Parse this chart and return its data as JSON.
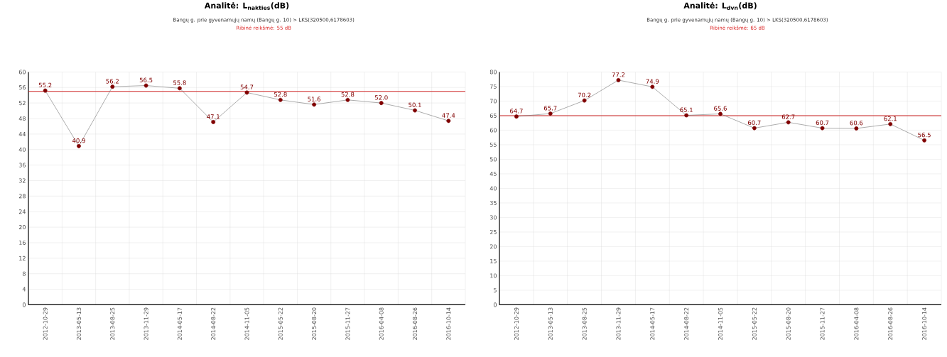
{
  "chart_data": [
    {
      "type": "line",
      "title": "Analitė: L$_{nakties}$(dB)",
      "subtitle": "Bangų g. prie gyvenamųjų namų (Bangų g. 10) > LKS(320500,6178603)",
      "annotations": [
        "Ribinė reikšmė: 55 dB"
      ],
      "categories": [
        "2012-10-29",
        "2013-05-13",
        "2013-08-25",
        "2013-11-29",
        "2014-05-17",
        "2014-08-22",
        "2014-11-05",
        "2015-05-22",
        "2015-08-20",
        "2015-11-27",
        "2016-04-08",
        "2016-08-26",
        "2016-10-14"
      ],
      "series": [
        {
          "color": "#800000",
          "values": [
            55.2,
            40.9,
            56.2,
            56.5,
            55.8,
            47.1,
            54.7,
            52.8,
            51.6,
            52.8,
            52.0,
            50.1,
            47.4
          ],
          "value_labels": [
            "55.2",
            "40.9",
            "56.2",
            "56.5",
            "55.8",
            "47.1",
            "54.7",
            "52.8",
            "51.6",
            "52.8",
            "52.0",
            "50.1",
            "47.4"
          ]
        }
      ],
      "ylim": [
        0,
        60
      ],
      "yticks": [
        0,
        4,
        8,
        12,
        16,
        20,
        24,
        28,
        32,
        36,
        40,
        44,
        48,
        52,
        56,
        60
      ],
      "ref_lines": [
        {
          "axis": "y",
          "value": 55,
          "color": "#cc2222"
        }
      ],
      "grid": true,
      "marker": "circle",
      "line_style": "solid"
    },
    {
      "type": "line",
      "title": "Analitė: L$_{dvn}$(dB)",
      "subtitle": "Bangų g. prie gyvenamųjų namų (Bangų g. 10) > LKS(320500,6178603)",
      "annotations": [
        "Ribinė reikšmė: 65 dB"
      ],
      "categories": [
        "2012-10-29",
        "2013-05-13",
        "2013-08-25",
        "2013-11-29",
        "2014-05-17",
        "2014-08-22",
        "2014-11-05",
        "2015-05-22",
        "2015-08-20",
        "2015-11-27",
        "2016-04-08",
        "2016-08-26",
        "2016-10-14"
      ],
      "series": [
        {
          "color": "#800000",
          "values": [
            64.7,
            65.7,
            70.2,
            77.2,
            74.9,
            65.1,
            65.6,
            60.7,
            62.7,
            60.7,
            60.6,
            62.1,
            56.5
          ],
          "value_labels": [
            "64.7",
            "65.7",
            "70.2",
            "77.2",
            "74.9",
            "65.1",
            "65.6",
            "60.7",
            "62.7",
            "60.7",
            "60.6",
            "62.1",
            "56.5"
          ]
        }
      ],
      "ylim": [
        0,
        80
      ],
      "yticks": [
        0,
        5,
        10,
        15,
        20,
        25,
        30,
        35,
        40,
        45,
        50,
        55,
        60,
        65,
        70,
        75,
        80
      ],
      "ref_lines": [
        {
          "axis": "y",
          "value": 65,
          "color": "#cc2222"
        }
      ],
      "grid": true,
      "marker": "circle",
      "line_style": "solid"
    }
  ]
}
